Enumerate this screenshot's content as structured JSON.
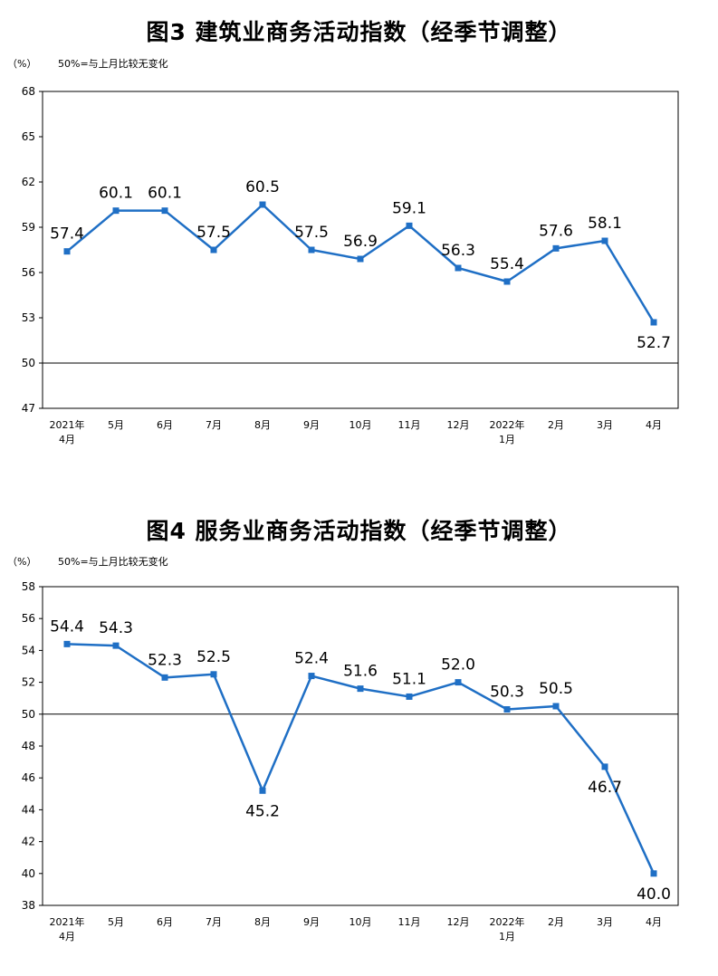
{
  "charts": [
    {
      "id": "chart3",
      "title": "图3  建筑业商务活动指数（经季节调整）",
      "unit_label": "（%）",
      "note": "50%=与上月比较无变化",
      "colors": {
        "line": "#1f6fc5",
        "axis": "#000000",
        "reference": "#000000"
      },
      "chart_data": {
        "type": "line",
        "categories": [
          "2021年|4月",
          "5月",
          "6月",
          "7月",
          "8月",
          "9月",
          "10月",
          "11月",
          "12月",
          "2022年|1月",
          "2月",
          "3月",
          "4月"
        ],
        "series": [
          {
            "values": [
              57.4,
              60.1,
              60.1,
              57.5,
              60.5,
              57.5,
              56.9,
              59.1,
              56.3,
              55.4,
              57.6,
              58.1,
              52.7
            ]
          }
        ],
        "yticks": [
          47,
          50,
          53,
          56,
          59,
          62,
          65,
          68
        ],
        "ylim": [
          47,
          68
        ],
        "reference_line": 50,
        "xlabel": "",
        "ylabel": "",
        "grid": false,
        "label_position": [
          "above",
          "above",
          "above",
          "above",
          "above",
          "above",
          "above",
          "above",
          "above",
          "above",
          "above",
          "above",
          "below"
        ]
      }
    },
    {
      "id": "chart4",
      "title": "图4  服务业商务活动指数（经季节调整）",
      "unit_label": "（%）",
      "note": "50%=与上月比较无变化",
      "colors": {
        "line": "#1f6fc5",
        "axis": "#000000",
        "reference": "#000000"
      },
      "chart_data": {
        "type": "line",
        "categories": [
          "2021年|4月",
          "5月",
          "6月",
          "7月",
          "8月",
          "9月",
          "10月",
          "11月",
          "12月",
          "2022年|1月",
          "2月",
          "3月",
          "4月"
        ],
        "series": [
          {
            "values": [
              54.4,
              54.3,
              52.3,
              52.5,
              45.2,
              52.4,
              51.6,
              51.1,
              52.0,
              50.3,
              50.5,
              46.7,
              40.0
            ]
          }
        ],
        "yticks": [
          38,
          40,
          42,
          44,
          46,
          48,
          50,
          52,
          54,
          56,
          58
        ],
        "ylim": [
          38,
          58
        ],
        "reference_line": 50,
        "xlabel": "",
        "ylabel": "",
        "grid": false,
        "label_position": [
          "above",
          "above",
          "above",
          "above",
          "below",
          "above",
          "above",
          "above",
          "above",
          "above",
          "above",
          "below",
          "below"
        ],
        "value_text": [
          "54.4",
          "54.3",
          "52.3",
          "52.5",
          "45.2",
          "52.4",
          "51.6",
          "51.1",
          "52.0",
          "50.3",
          "50.5",
          "46.7",
          "40.0"
        ]
      }
    }
  ]
}
